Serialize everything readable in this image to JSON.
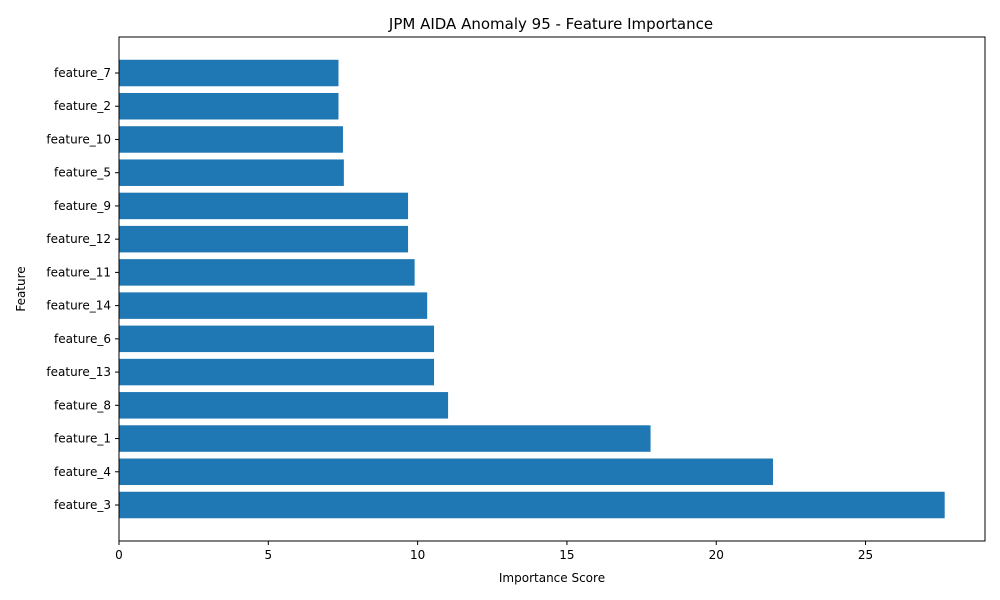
{
  "chart_data": {
    "type": "bar",
    "orientation": "horizontal",
    "title": "JPM AIDA Anomaly 95 - Feature Importance",
    "xlabel": "Importance Score",
    "ylabel": "Feature",
    "xlim": [
      0,
      29
    ],
    "x_ticks": [
      0,
      5,
      10,
      15,
      20,
      25
    ],
    "bar_color": "#1f77b4",
    "grid": false,
    "categories": [
      "feature_3",
      "feature_4",
      "feature_1",
      "feature_8",
      "feature_13",
      "feature_6",
      "feature_14",
      "feature_11",
      "feature_12",
      "feature_9",
      "feature_5",
      "feature_10",
      "feature_2",
      "feature_7"
    ],
    "values": [
      27.65,
      21.9,
      17.8,
      11.02,
      10.55,
      10.55,
      10.32,
      9.9,
      9.68,
      9.68,
      7.53,
      7.5,
      7.35,
      7.35
    ]
  }
}
